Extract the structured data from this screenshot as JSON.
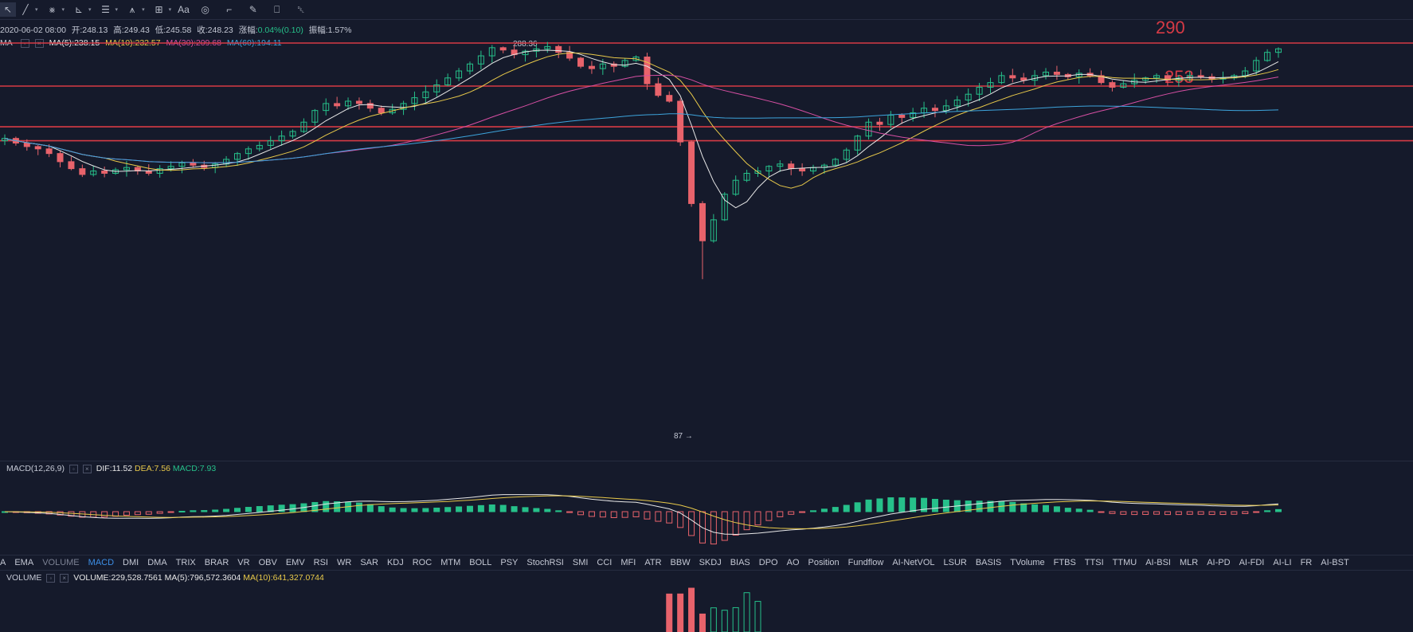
{
  "toolbar": {
    "items": [
      {
        "icon": "cursor-icon",
        "glyph": "↖"
      },
      {
        "icon": "line-icon",
        "glyph": "╱"
      },
      {
        "icon": "multi-line-icon",
        "glyph": "⨳"
      },
      {
        "icon": "angle-icon",
        "glyph": "⊾"
      },
      {
        "icon": "channel-icon",
        "glyph": "☰"
      },
      {
        "icon": "wave-icon",
        "glyph": "⩚"
      },
      {
        "icon": "crosshair-icon",
        "glyph": "⊞"
      }
    ],
    "text_tool": "Aa",
    "tail_icons": [
      {
        "icon": "shapes-icon",
        "glyph": "◎"
      },
      {
        "icon": "ruler-icon",
        "glyph": "⌐"
      },
      {
        "icon": "pen-icon",
        "glyph": "✎"
      },
      {
        "icon": "lock-icon",
        "glyph": "⎕"
      },
      {
        "icon": "trash-icon",
        "glyph": "␡"
      }
    ]
  },
  "ohlc": {
    "date": "2020-06-02 08:00",
    "open": "开:248.13",
    "high": "高:249.43",
    "low": "低:245.58",
    "close": "收:248.23",
    "change_label": "涨幅:",
    "change_value": "0.04%(0.10)",
    "amplitude": "振幅:1.57%"
  },
  "ma_legend": {
    "label": "MA",
    "items": [
      {
        "text": "MA(5):238.15",
        "color": "#e8e8e8"
      },
      {
        "text": "MA(10):232.57",
        "color": "#e8c94a"
      },
      {
        "text": "MA(30):209.68",
        "color": "#d64fa3"
      },
      {
        "text": "MA(60):194.11",
        "color": "#3da4dc"
      }
    ]
  },
  "annotations": {
    "level_290": "290",
    "level_253": "253",
    "low_label": "87 →",
    "high_label": "288.36"
  },
  "macd_legend": {
    "label": "MACD(12,26,9)",
    "dif": "DIF:11.52",
    "dea": "DEA:7.56",
    "macd": "MACD:7.93"
  },
  "indicator_tabs": [
    "A",
    "EMA",
    "VOLUME",
    "MACD",
    "DMI",
    "DMA",
    "TRIX",
    "BRAR",
    "VR",
    "OBV",
    "EMV",
    "RSI",
    "WR",
    "SAR",
    "KDJ",
    "ROC",
    "MTM",
    "BOLL",
    "PSY",
    "StochRSI",
    "SMI",
    "CCI",
    "MFI",
    "ATR",
    "BBW",
    "SKDJ",
    "BIAS",
    "DPO",
    "AO",
    "Position",
    "Fundflow",
    "AI-NetVOL",
    "LSUR",
    "BASIS",
    "TVolume",
    "FTBS",
    "TTSI",
    "TTMU",
    "AI-BSI",
    "MLR",
    "AI-PD",
    "AI-FDI",
    "AI-LI",
    "FR",
    "AI-BST"
  ],
  "selected_tab": "MACD",
  "volume_legend": {
    "label": "VOLUME",
    "volume": "VOLUME:229,528.7561",
    "ma5": "MA(5):796,572.3604",
    "ma10": "MA(10):641,327.0744"
  },
  "colors": {
    "up": "#26c08a",
    "down": "#e8636b",
    "bg": "#151a2b",
    "level": "#d63a45"
  },
  "chart_data": {
    "type": "candlestick",
    "price_levels": [
      290,
      253
    ],
    "close_series": [
      208,
      204,
      201,
      199,
      195,
      188,
      182,
      177,
      180,
      178,
      181,
      183,
      180,
      178,
      182,
      184,
      187,
      185,
      183,
      186,
      190,
      195,
      199,
      202,
      206,
      210,
      214,
      222,
      232,
      238,
      236,
      240,
      238,
      234,
      230,
      233,
      238,
      243,
      248,
      254,
      260,
      266,
      272,
      279,
      286,
      284,
      280,
      283,
      285,
      287,
      282,
      277,
      270,
      268,
      272,
      270,
      275,
      278,
      255,
      245,
      240,
      205,
      152,
      120,
      138,
      160,
      172,
      178,
      180,
      184,
      186,
      182,
      180,
      183,
      185,
      190,
      198,
      210,
      222,
      220,
      228,
      226,
      230,
      234,
      232,
      236,
      241,
      246,
      252,
      256,
      262,
      260,
      258,
      262,
      265,
      263,
      261,
      264,
      262,
      256,
      252,
      255,
      258,
      260,
      262,
      258,
      260,
      262,
      261,
      259,
      260,
      262,
      266,
      275,
      282,
      285
    ]
  }
}
